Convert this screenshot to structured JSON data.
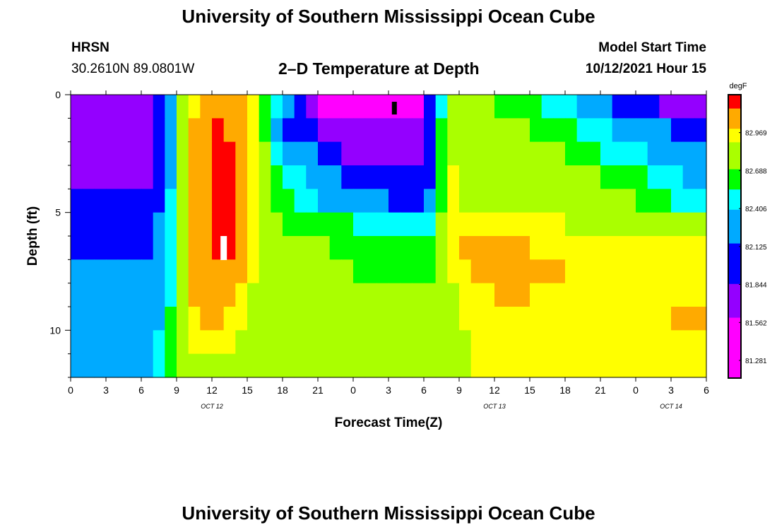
{
  "page": {
    "top_title": "University of Southern Mississippi Ocean Cube",
    "bottom_title": "University of Southern Mississippi Ocean Cube",
    "station": "HRSN",
    "coordinates": "30.2610N  89.0801W",
    "center_title": "2–D Temperature at Depth",
    "model_start_label": "Model Start Time",
    "model_start_value": "10/12/2021 Hour 15"
  },
  "chart_data": {
    "type": "heatmap",
    "title": "2–D Temperature at Depth",
    "xlabel": "Forecast Time(Z)",
    "ylabel": "Depth (ft)",
    "ylim": [
      0,
      12
    ],
    "y_ticks": [
      "0",
      "5",
      "10"
    ],
    "y_tick_values": [
      0,
      5,
      10
    ],
    "x_tick_labels": [
      "0",
      "3",
      "6",
      "9",
      "12",
      "15",
      "18",
      "21",
      "0",
      "3",
      "6",
      "9",
      "12",
      "15",
      "18",
      "21",
      "0",
      "3",
      "6"
    ],
    "x_hours": [
      0,
      3,
      6,
      9,
      12,
      15,
      18,
      21,
      24,
      27,
      30,
      33,
      36,
      39,
      42,
      45,
      48,
      51,
      54
    ],
    "day_labels": [
      "OCT 12",
      "OCT 13",
      "OCT 14"
    ],
    "day_label_hours": [
      12,
      36,
      51
    ],
    "depth_levels_ft": [
      0,
      1,
      2,
      3,
      4,
      5,
      6,
      7,
      8,
      9,
      10,
      11
    ],
    "colorbar": {
      "unit": "degF",
      "ticks": [
        "82.969",
        "82.688",
        "82.406",
        "82.125",
        "81.844",
        "81.562",
        "81.281"
      ],
      "tick_values": [
        82.969,
        82.688,
        82.406,
        82.125,
        81.844,
        81.562,
        81.281
      ],
      "vmin": 81.15,
      "vmax": 83.25,
      "colors": [
        "#ff00ff",
        "#9400ff",
        "#0000ff",
        "#00aaff",
        "#00ffff",
        "#00ff00",
        "#aaff00",
        "#ffff00",
        "#ffaa00",
        "#ff0000"
      ]
    },
    "color_levels": [
      81.15,
      81.6,
      81.85,
      82.15,
      82.4,
      82.55,
      82.7,
      82.9,
      83.0,
      83.15,
      83.25
    ],
    "temperature_profiles_degF": [
      {
        "depth_ft": 0,
        "hour": [
          0,
          7,
          8,
          10,
          11,
          13,
          15,
          16,
          18,
          20,
          22,
          24,
          27,
          30,
          31,
          32,
          33,
          36,
          39,
          42,
          45,
          48,
          51,
          54
        ],
        "value": [
          81.75,
          81.75,
          82.2,
          82.9,
          83.05,
          83.15,
          83.05,
          82.8,
          82.3,
          81.8,
          81.5,
          81.4,
          81.3,
          81.55,
          82.3,
          82.75,
          82.8,
          82.7,
          82.6,
          82.45,
          82.2,
          81.95,
          81.8,
          81.8
        ]
      },
      {
        "depth_ft": 1,
        "hour": [
          0,
          7,
          8,
          10,
          11,
          13,
          15,
          16,
          18,
          20,
          22,
          24,
          27,
          30,
          31,
          32,
          33,
          36,
          39,
          42,
          45,
          48,
          51,
          54
        ],
        "value": [
          81.75,
          81.75,
          82.2,
          82.95,
          83.1,
          83.18,
          83.05,
          82.8,
          82.2,
          81.9,
          81.7,
          81.65,
          81.65,
          81.7,
          82.3,
          82.8,
          82.85,
          82.75,
          82.7,
          82.6,
          82.45,
          82.3,
          82.15,
          82.1
        ]
      },
      {
        "depth_ft": 2,
        "hour": [
          0,
          7,
          8,
          10,
          11,
          13,
          15,
          16,
          18,
          20,
          22,
          24,
          27,
          30,
          31,
          32,
          33,
          36,
          39,
          42,
          45,
          48,
          51,
          54
        ],
        "value": [
          81.75,
          81.75,
          82.2,
          82.95,
          83.1,
          83.2,
          83.05,
          82.8,
          82.4,
          82.25,
          81.95,
          81.8,
          81.75,
          81.75,
          82.3,
          82.85,
          82.85,
          82.8,
          82.75,
          82.7,
          82.55,
          82.45,
          82.3,
          82.15
        ]
      },
      {
        "depth_ft": 3,
        "hour": [
          0,
          7,
          8,
          10,
          11,
          13,
          15,
          16,
          18,
          20,
          22,
          24,
          27,
          30,
          31,
          32,
          33,
          36,
          39,
          42,
          45,
          48,
          51,
          54
        ],
        "value": [
          81.8,
          81.8,
          82.2,
          82.95,
          83.1,
          83.2,
          83.05,
          82.8,
          82.5,
          82.4,
          82.2,
          82.05,
          82.0,
          81.95,
          82.3,
          82.9,
          82.9,
          82.85,
          82.8,
          82.75,
          82.7,
          82.6,
          82.45,
          82.3
        ]
      },
      {
        "depth_ft": 4,
        "hour": [
          0,
          7,
          8,
          10,
          11,
          13,
          15,
          16,
          18,
          20,
          22,
          24,
          27,
          30,
          31,
          32,
          33,
          36,
          39,
          42,
          45,
          48,
          51,
          54
        ],
        "value": [
          81.85,
          81.85,
          82.25,
          82.95,
          83.1,
          83.22,
          83.05,
          82.8,
          82.6,
          82.5,
          82.35,
          82.2,
          82.15,
          82.1,
          82.35,
          82.9,
          82.9,
          82.88,
          82.85,
          82.8,
          82.75,
          82.7,
          82.55,
          82.45
        ]
      },
      {
        "depth_ft": 5,
        "hour": [
          0,
          7,
          8,
          10,
          11,
          13,
          15,
          16,
          18,
          20,
          22,
          24,
          27,
          30,
          31,
          32,
          33,
          36,
          39,
          42,
          45,
          48,
          51,
          54
        ],
        "value": [
          81.95,
          82.0,
          82.3,
          82.95,
          83.1,
          83.22,
          83.0,
          82.8,
          82.7,
          82.65,
          82.6,
          82.55,
          82.5,
          82.45,
          82.6,
          82.9,
          82.95,
          83.0,
          82.95,
          82.9,
          82.85,
          82.85,
          82.8,
          82.75
        ]
      },
      {
        "depth_ft": 6,
        "hour": [
          0,
          7,
          8,
          10,
          11,
          13,
          15,
          16,
          18,
          20,
          22,
          24,
          27,
          30,
          31,
          32,
          33,
          36,
          39,
          42,
          45,
          48,
          51,
          54
        ],
        "value": [
          82.1,
          82.1,
          82.35,
          82.95,
          83.1,
          83.2,
          83.0,
          82.8,
          82.75,
          82.72,
          82.7,
          82.65,
          82.6,
          82.55,
          82.7,
          82.9,
          83.0,
          83.05,
          83.0,
          82.95,
          82.92,
          82.9,
          82.9,
          82.9
        ]
      },
      {
        "depth_ft": 7,
        "hour": [
          0,
          7,
          8,
          10,
          11,
          13,
          15,
          16,
          18,
          20,
          22,
          24,
          27,
          30,
          31,
          32,
          33,
          36,
          39,
          42,
          45,
          48,
          51,
          54
        ],
        "value": [
          82.25,
          82.2,
          82.4,
          82.95,
          83.1,
          83.15,
          83.0,
          82.8,
          82.75,
          82.75,
          82.72,
          82.7,
          82.68,
          82.65,
          82.7,
          82.85,
          82.95,
          83.05,
          83.02,
          83.0,
          82.95,
          82.95,
          82.95,
          82.95
        ]
      },
      {
        "depth_ft": 8,
        "hour": [
          0,
          7,
          8,
          10,
          11,
          13,
          15,
          16,
          18,
          20,
          22,
          24,
          27,
          30,
          31,
          32,
          33,
          36,
          39,
          42,
          45,
          48,
          51,
          54
        ],
        "value": [
          82.25,
          82.2,
          82.4,
          82.95,
          83.05,
          83.05,
          82.95,
          82.78,
          82.75,
          82.75,
          82.72,
          82.7,
          82.7,
          82.7,
          82.72,
          82.82,
          82.92,
          83.0,
          83.0,
          82.98,
          82.95,
          82.95,
          82.98,
          82.98
        ]
      },
      {
        "depth_ft": 9,
        "hour": [
          0,
          7,
          8,
          10,
          11,
          13,
          15,
          16,
          18,
          20,
          22,
          24,
          27,
          30,
          31,
          32,
          33,
          36,
          39,
          42,
          45,
          48,
          51,
          54
        ],
        "value": [
          82.3,
          82.25,
          82.45,
          82.95,
          83.0,
          83.0,
          82.9,
          82.75,
          82.72,
          82.72,
          82.72,
          82.7,
          82.7,
          82.7,
          82.72,
          82.8,
          82.9,
          82.98,
          82.98,
          82.96,
          82.95,
          82.95,
          83.0,
          83.0
        ]
      },
      {
        "depth_ft": 10,
        "hour": [
          0,
          7,
          8,
          10,
          11,
          13,
          15,
          16,
          18,
          20,
          22,
          24,
          27,
          30,
          31,
          32,
          33,
          36,
          39,
          42,
          45,
          48,
          51,
          54
        ],
        "value": [
          82.35,
          82.3,
          82.5,
          82.9,
          82.95,
          82.95,
          82.85,
          82.75,
          82.72,
          82.72,
          82.72,
          82.7,
          82.7,
          82.7,
          82.72,
          82.78,
          82.88,
          82.96,
          82.96,
          82.95,
          82.93,
          82.93,
          82.98,
          83.0
        ]
      },
      {
        "depth_ft": 11,
        "hour": [
          0,
          7,
          8,
          10,
          11,
          13,
          15,
          16,
          18,
          20,
          22,
          24,
          27,
          30,
          31,
          32,
          33,
          36,
          39,
          42,
          45,
          48,
          51,
          54
        ],
        "value": [
          82.4,
          82.35,
          82.55,
          82.85,
          82.88,
          82.88,
          82.8,
          82.72,
          82.7,
          82.7,
          82.7,
          82.7,
          82.7,
          82.7,
          82.72,
          82.76,
          82.85,
          82.95,
          82.95,
          82.93,
          82.92,
          82.9,
          82.95,
          83.0
        ]
      }
    ],
    "markers": [
      {
        "hour": 27.5,
        "depth_ft": 0.3,
        "color": "#000000"
      },
      {
        "hour": 13.0,
        "depth_ft": 6.0,
        "color": "#ffffff"
      }
    ]
  }
}
